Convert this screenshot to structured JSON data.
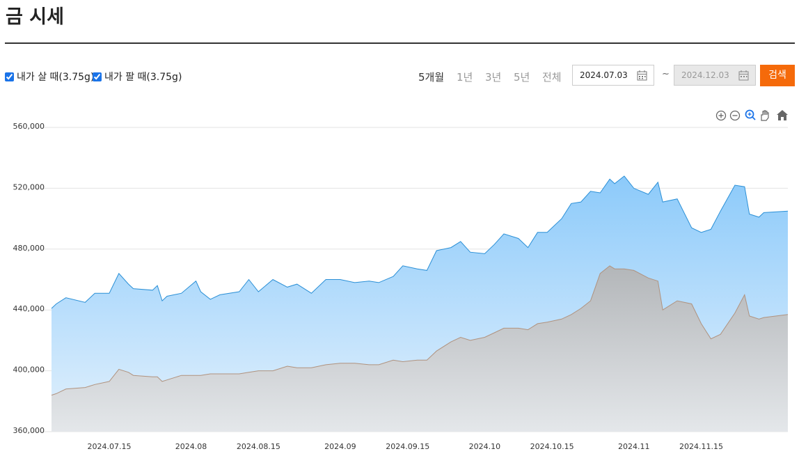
{
  "header": {
    "title": "금 시세"
  },
  "controls": {
    "ranges": [
      "5개월",
      "1년",
      "3년",
      "5년",
      "전체"
    ],
    "selected_range_index": 0,
    "start_date": "2024.07.03",
    "separator": "~",
    "end_date": "2024.12.03",
    "search": "검색"
  },
  "chart_data": {
    "type": "area",
    "x": [
      "2024-07-03",
      "2024-07-04",
      "2024-07-06",
      "2024-07-10",
      "2024-07-12",
      "2024-07-15",
      "2024-07-17",
      "2024-07-19",
      "2024-07-20",
      "2024-07-24",
      "2024-07-25",
      "2024-07-26",
      "2024-07-27",
      "2024-07-30",
      "2024-08-02",
      "2024-08-03",
      "2024-08-05",
      "2024-08-07",
      "2024-08-11",
      "2024-08-13",
      "2024-08-15",
      "2024-08-18",
      "2024-08-21",
      "2024-08-23",
      "2024-08-26",
      "2024-08-29",
      "2024-09-01",
      "2024-09-04",
      "2024-09-07",
      "2024-09-09",
      "2024-09-12",
      "2024-09-14",
      "2024-09-17",
      "2024-09-19",
      "2024-09-21",
      "2024-09-24",
      "2024-09-26",
      "2024-09-28",
      "2024-10-01",
      "2024-10-03",
      "2024-10-05",
      "2024-10-08",
      "2024-10-10",
      "2024-10-12",
      "2024-10-14",
      "2024-10-17",
      "2024-10-19",
      "2024-10-21",
      "2024-10-23",
      "2024-10-25",
      "2024-10-27",
      "2024-10-28",
      "2024-10-30",
      "2024-11-01",
      "2024-11-04",
      "2024-11-06",
      "2024-11-07",
      "2024-11-10",
      "2024-11-13",
      "2024-11-15",
      "2024-11-17",
      "2024-11-19",
      "2024-11-22",
      "2024-11-24",
      "2024-11-25",
      "2024-11-27",
      "2024-11-28",
      "2024-12-03"
    ],
    "series": [
      {
        "name": "내가 살 때(3.75g)",
        "color": "#2a8fd6",
        "fill": "url(#gBlue)",
        "values": [
          441000,
          444000,
          448000,
          445000,
          451000,
          451000,
          464000,
          457000,
          454000,
          453000,
          456000,
          446000,
          449000,
          451000,
          459000,
          452000,
          447000,
          450000,
          452000,
          460000,
          452000,
          460000,
          455000,
          457000,
          451000,
          460000,
          460000,
          458000,
          459000,
          458000,
          462000,
          469000,
          467000,
          466000,
          479000,
          481000,
          485000,
          478000,
          477000,
          483000,
          490000,
          487000,
          481000,
          491000,
          491000,
          500000,
          510000,
          511000,
          518000,
          517000,
          526000,
          523000,
          528000,
          520000,
          516000,
          524000,
          511000,
          513000,
          494000,
          491000,
          493000,
          505000,
          522000,
          521000,
          503000,
          501000,
          504000,
          505000
        ]
      },
      {
        "name": "내가 팔 때(3.75g)",
        "color": "#b0927e",
        "fill": "url(#gGray)",
        "values": [
          384000,
          385000,
          388000,
          389000,
          391000,
          393000,
          401000,
          399000,
          397000,
          396000,
          396000,
          393000,
          394000,
          397000,
          397000,
          397000,
          398000,
          398000,
          398000,
          399000,
          400000,
          400000,
          403000,
          402000,
          402000,
          404000,
          405000,
          405000,
          404000,
          404000,
          407000,
          406000,
          407000,
          407000,
          413000,
          419000,
          422000,
          420000,
          422000,
          425000,
          428000,
          428000,
          427000,
          431000,
          432000,
          434000,
          437000,
          441000,
          446000,
          464000,
          469000,
          467000,
          467000,
          466000,
          461000,
          459000,
          440000,
          446000,
          444000,
          431000,
          421000,
          424000,
          438000,
          450000,
          436000,
          434000,
          435000,
          437000
        ]
      }
    ],
    "xlim": [
      "2024-07-03",
      "2024-12-03"
    ],
    "xticks": [
      {
        "value": "2024-07-15",
        "label": "2024.07.15"
      },
      {
        "value": "2024-08-01",
        "label": "2024.08"
      },
      {
        "value": "2024-08-15",
        "label": "2024.08.15"
      },
      {
        "value": "2024-09-01",
        "label": "2024.09"
      },
      {
        "value": "2024-09-15",
        "label": "2024.09.15"
      },
      {
        "value": "2024-10-01",
        "label": "2024.10"
      },
      {
        "value": "2024-10-15",
        "label": "2024.10.15"
      },
      {
        "value": "2024-11-01",
        "label": "2024.11"
      },
      {
        "value": "2024-11-15",
        "label": "2024.11.15"
      }
    ],
    "ylim": [
      360000,
      560000
    ],
    "yticks": [
      {
        "value": 360000,
        "label": "360,000"
      },
      {
        "value": 400000,
        "label": "400,000"
      },
      {
        "value": 440000,
        "label": "440,000"
      },
      {
        "value": 480000,
        "label": "480,000"
      },
      {
        "value": 520000,
        "label": "520,000"
      },
      {
        "value": 560000,
        "label": "560,000"
      }
    ],
    "grid": true
  }
}
